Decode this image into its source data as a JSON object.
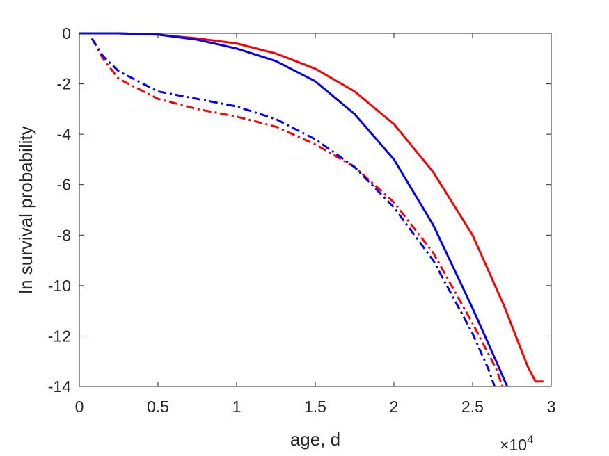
{
  "chart_data": {
    "type": "line",
    "title": "",
    "xlabel": "age, d",
    "ylabel": "ln survival probability",
    "x_multiplier": {
      "base": "×10",
      "exponent": "4"
    },
    "xlim": [
      0,
      30000
    ],
    "ylim": [
      -14,
      0
    ],
    "xticks": [
      0,
      5000,
      10000,
      15000,
      20000,
      25000,
      30000
    ],
    "xtick_labels": [
      "0",
      "0.5",
      "1",
      "1.5",
      "2",
      "2.5",
      "3"
    ],
    "yticks": [
      0,
      -2,
      -4,
      -6,
      -8,
      -10,
      -12,
      -14
    ],
    "ytick_labels": [
      "0",
      "-2",
      "-4",
      "-6",
      "-8",
      "-10",
      "-12",
      "-14"
    ],
    "grid": false,
    "legend": "none",
    "series": [
      {
        "color": "#ff0000",
        "style": "solid",
        "x": [
          0,
          2500,
          5000,
          7500,
          10000,
          12500,
          15000,
          17500,
          20000,
          22500,
          25000,
          27000,
          28500,
          29000,
          29500
        ],
        "y": [
          0,
          0,
          -0.05,
          -0.2,
          -0.4,
          -0.8,
          -1.4,
          -2.3,
          -3.6,
          -5.5,
          -8.0,
          -10.8,
          -13.2,
          -13.8,
          -13.8
        ]
      },
      {
        "color": "#0000ff",
        "style": "solid",
        "x": [
          0,
          2500,
          5000,
          7500,
          10000,
          12500,
          15000,
          17500,
          20000,
          22500,
          25000,
          26500,
          27200
        ],
        "y": [
          0,
          0,
          -0.05,
          -0.25,
          -0.6,
          -1.1,
          -1.9,
          -3.2,
          -5.0,
          -7.6,
          -10.9,
          -13.0,
          -14.0
        ]
      },
      {
        "color": "#ff0000",
        "style": "dashdot",
        "x": [
          800,
          1500,
          2500,
          5000,
          7500,
          10000,
          12500,
          15000,
          17500,
          20000,
          22500,
          25000,
          26500,
          26900
        ],
        "y": [
          -0.2,
          -1.0,
          -1.8,
          -2.6,
          -3.0,
          -3.3,
          -3.7,
          -4.4,
          -5.3,
          -6.7,
          -8.7,
          -11.5,
          -13.3,
          -14.0
        ]
      },
      {
        "color": "#0000ff",
        "style": "dashdot",
        "x": [
          800,
          1500,
          2500,
          5000,
          7500,
          10000,
          12500,
          15000,
          17500,
          20000,
          22500,
          25000,
          26000,
          26400
        ],
        "y": [
          -0.2,
          -0.9,
          -1.5,
          -2.3,
          -2.6,
          -2.9,
          -3.4,
          -4.2,
          -5.3,
          -6.9,
          -9.0,
          -11.9,
          -13.3,
          -14.0
        ]
      }
    ]
  }
}
